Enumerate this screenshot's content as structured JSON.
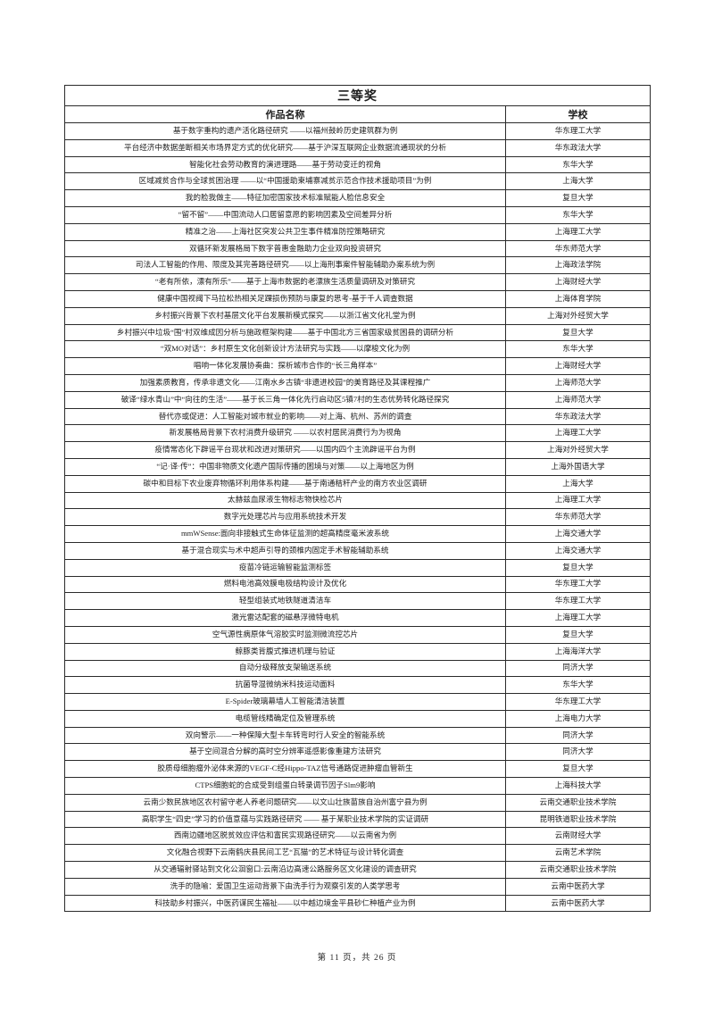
{
  "table": {
    "title": "三等奖",
    "columns": [
      "作品名称",
      "学校"
    ],
    "rows": [
      {
        "work": "基于数字重构的遗产活化路径研究 ——以福州鼓岭历史建筑群为例",
        "school": "华东理工大学"
      },
      {
        "work": "平台经济中数据垄断相关市场界定方式的优化研究——基于沪深互联网企业数据流通现状的分析",
        "school": "华东政法大学"
      },
      {
        "work": "智能化社会劳动教育的演进理路——基于劳动变迁的视角",
        "school": "东华大学"
      },
      {
        "work": "区域减贫合作与全球贫困治理 ——以“中国援助柬埔寨减贫示范合作技术援助项目”为例",
        "school": "上海大学"
      },
      {
        "work": "我的脸我做主——特征加密国家技术标准赋能人脸信息安全",
        "school": "复旦大学"
      },
      {
        "work": "“留不留”——中国流动人口居留意愿的影响因素及空间差异分析",
        "school": "东华大学"
      },
      {
        "work": "精准之治——上海社区突发公共卫生事件精准防控策略研究",
        "school": "上海理工大学"
      },
      {
        "work": "双循环新发展格局下数字普惠金融助力企业双向投资研究",
        "school": "华东师范大学"
      },
      {
        "work": "司法人工智能的作用、限度及其完善路径研究——以上海刑事案件智能辅助办案系统为例",
        "school": "上海政法学院"
      },
      {
        "work": "“老有所依，漂有所乐”——基于上海市数据的老漂族生活质量调研及对策研究",
        "school": "上海财经大学"
      },
      {
        "work": "健康中国视阈下马拉松热相关足踝损伤预防与康复的思考-基于千人调查数据",
        "school": "上海体育学院"
      },
      {
        "work": "乡村振兴背景下农村基层文化平台发展新模式探究——以浙江省文化礼堂为例",
        "school": "上海对外经贸大学"
      },
      {
        "work": "乡村振兴中垃圾“围”村双维成因分析与施政框架构建——基于中国北方三省国家级贫困县的调研分析",
        "school": "复旦大学"
      },
      {
        "work": "“双MO对话”：乡村原生文化创新设计方法研究与实践——以摩梭文化为例",
        "school": "东华大学"
      },
      {
        "work": "唱响一体化发展协奏曲：探析城市合作的“长三角样本”",
        "school": "上海财经大学"
      },
      {
        "work": "加强素质教育，传承非遗文化——江南水乡古镇“非遗进校园”的美育路径及其课程推广",
        "school": "上海师范大学"
      },
      {
        "work": "破译“绿水青山”中“向往的生活”——基于长三角一体化先行启动区5镇7村的生态优势转化路径探究",
        "school": "上海师范大学"
      },
      {
        "work": "替代亦或促进：人工智能对城市就业的影响——对上海、杭州、苏州的调查",
        "school": "华东政法大学"
      },
      {
        "work": "新发展格局背景下农村消费升级研究 ——以农村居民消费行为为视角",
        "school": "上海理工大学"
      },
      {
        "work": "疫情常态化下辟谣平台现状和改进对策研究——以国内四个主流辟谣平台为例",
        "school": "上海对外经贸大学"
      },
      {
        "work": "“记·译·传”：中国非物质文化遗产国际传播的困境与对策——以上海地区为例",
        "school": "上海外国语大学"
      },
      {
        "work": "碳中和目标下农业废弃物循环利用体系构建——基于南通秸秆产业的南方农业区调研",
        "school": "上海大学"
      },
      {
        "work": "太赫兹血尿液生物标志物快检芯片",
        "school": "上海理工大学"
      },
      {
        "work": "数字光处理芯片与应用系统技术开发",
        "school": "华东师范大学"
      },
      {
        "work": "mmWSense:面向非接触式生命体征监测的超高精度毫米波系统",
        "school": "上海交通大学"
      },
      {
        "work": "基于混合现实与术中超声引导的颈椎内固定手术智能辅助系统",
        "school": "上海交通大学"
      },
      {
        "work": "疫苗冷链运输智能监测标签",
        "school": "复旦大学"
      },
      {
        "work": "燃料电池高效膜电极结构设计及优化",
        "school": "华东理工大学"
      },
      {
        "work": "轻型组装式地铁隧道清洁车",
        "school": "华东理工大学"
      },
      {
        "work": "激光雷达配套的磁悬浮微特电机",
        "school": "上海理工大学"
      },
      {
        "work": "空气源性病原体气溶胶实时监测微流控芯片",
        "school": "复旦大学"
      },
      {
        "work": "鲸豚类背腹式推进机理与验证",
        "school": "上海海洋大学"
      },
      {
        "work": "自动分级释放支架输送系统",
        "school": "同济大学"
      },
      {
        "work": "抗菌导湿微纳米科技运动面料",
        "school": "东华大学"
      },
      {
        "work": "E-Spider玻璃幕墙人工智能清洁装置",
        "school": "华东理工大学"
      },
      {
        "work": "电缆管线精确定位及管理系统",
        "school": "上海电力大学"
      },
      {
        "work": "双向警示——一种保障大型卡车转弯时行人安全的智能系统",
        "school": "同济大学"
      },
      {
        "work": "基于空间混合分解的高时空分辨率遥感影像重建方法研究",
        "school": "同济大学"
      },
      {
        "work": "胶质母细胞瘤外泌体来源的VEGF-C经Hippo-TAZ信号通路促进肿瘤血管新生",
        "school": "复旦大学"
      },
      {
        "work": "CTPS细胞蛇的合成受到组蛋白转录调节因子Slm9影响",
        "school": "上海科技大学"
      },
      {
        "work": "云南少数民族地区农村留守老人养老问题研究——以文山壮族苗族自治州富宁县为例",
        "school": "云南交通职业技术学院"
      },
      {
        "work": "高职学生“四史”学习的价值意蕴与实践路径研究 —— 基于某职业技术学院的实证调研",
        "school": "昆明铁道职业技术学院"
      },
      {
        "work": "西南边疆地区脱贫效应评估和富民实现路径研究——以云南省为例",
        "school": "云南财经大学"
      },
      {
        "work": "文化融合视野下云南鹤庆县民间工艺“瓦猫”的艺术特征与设计转化调查",
        "school": "云南艺术学院"
      },
      {
        "work": "从交通辐射驿站到文化公洄窗口:云南沿边高速公路服务区文化建设的调查研究",
        "school": "云南交通职业技术学院"
      },
      {
        "work": "洗手的隐喻：爱国卫生运动背景下由洗手行为观察引发的人类学思考",
        "school": "云南中医药大学"
      },
      {
        "work": "科技助乡村振兴，中医药谋民生福祉——以中越边境金平县砂仁种植产业为例",
        "school": "云南中医药大学"
      }
    ]
  },
  "footer": {
    "text": "第 11 页，共 26 页"
  }
}
